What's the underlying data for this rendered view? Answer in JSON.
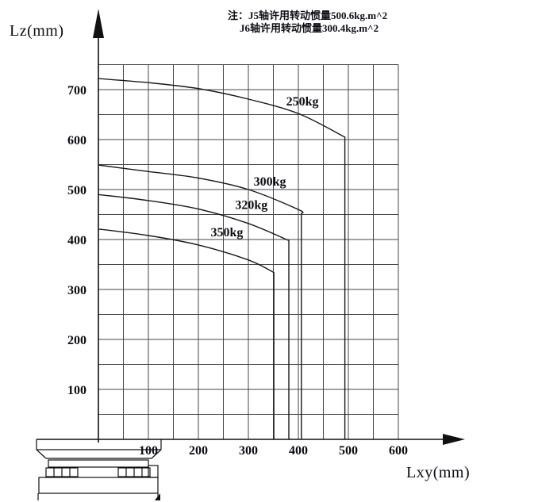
{
  "note": {
    "line1": "注：J5轴许用转动惯量500.6kg.m^2",
    "line2": "J6轴许用转动惯量300.4kg.m^2"
  },
  "chart_data": {
    "type": "line",
    "title": "",
    "xlabel": "Lxy(mm)",
    "ylabel": "Lz(mm)",
    "xlim": [
      0,
      600
    ],
    "ylim": [
      0,
      750
    ],
    "grid": true,
    "grid_step": 50,
    "xticks": [
      100,
      200,
      300,
      400,
      500,
      600
    ],
    "yticks": [
      100,
      200,
      300,
      400,
      500,
      600,
      700
    ],
    "legend_position": "labels-on-curves",
    "series": [
      {
        "name": "250kg",
        "label_pos": [
          408,
          676
        ],
        "points": [
          [
            0,
            722
          ],
          [
            100,
            714
          ],
          [
            200,
            702
          ],
          [
            300,
            681
          ],
          [
            400,
            652
          ],
          [
            493,
            605
          ],
          [
            493,
            0
          ]
        ]
      },
      {
        "name": "300kg",
        "label_pos": [
          343,
          516
        ],
        "points": [
          [
            0,
            549
          ],
          [
            100,
            536
          ],
          [
            200,
            523
          ],
          [
            300,
            500
          ],
          [
            400,
            460
          ],
          [
            406,
            452
          ],
          [
            406,
            0
          ]
        ]
      },
      {
        "name": "320kg",
        "label_pos": [
          306,
          469
        ],
        "points": [
          [
            0,
            490
          ],
          [
            100,
            478
          ],
          [
            200,
            461
          ],
          [
            300,
            432
          ],
          [
            381,
            398
          ],
          [
            381,
            0
          ]
        ]
      },
      {
        "name": "350kg",
        "label_pos": [
          257,
          414
        ],
        "points": [
          [
            0,
            421
          ],
          [
            100,
            408
          ],
          [
            200,
            389
          ],
          [
            300,
            359
          ],
          [
            351,
            334
          ],
          [
            351,
            0
          ]
        ]
      }
    ],
    "colors": {
      "curve": "#1a1a1a",
      "grid": "#454545",
      "axis": "#111111",
      "text": "#0d0d14"
    }
  }
}
